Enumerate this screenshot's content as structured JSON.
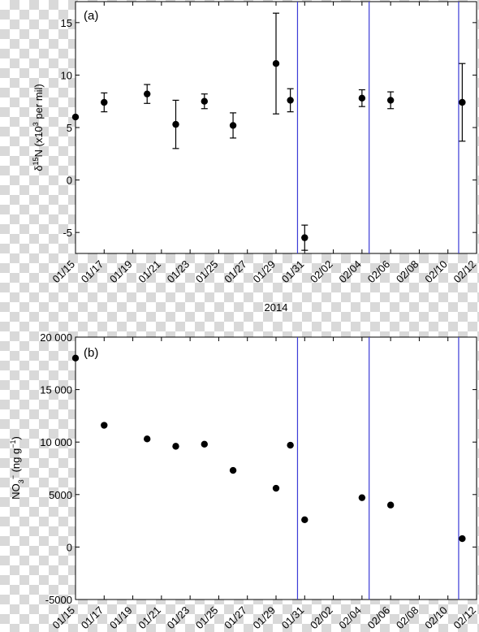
{
  "chart_data": [
    {
      "type": "scatter",
      "panel_label": "(a)",
      "xlabel": "2014",
      "ylabel": "δ15N (x10³ per mil)",
      "ylabel_parts": {
        "delta": "δ",
        "sup1": "15",
        "mid": "N (x10",
        "sup2": "3",
        "end": " per mil)"
      },
      "xlim": [
        "01/15",
        "02/12"
      ],
      "ylim": [
        -7,
        17
      ],
      "yticks": [
        -5,
        0,
        5,
        10,
        15
      ],
      "ytick_labels": [
        "-5",
        "0",
        "5",
        "10",
        "15"
      ],
      "xtick_labels": [
        "01/15",
        "01/17",
        "01/19",
        "01/21",
        "01/23",
        "01/25",
        "01/27",
        "01/29",
        "01/31",
        "02/02",
        "02/04",
        "02/06",
        "02/08",
        "02/10",
        "02/12"
      ],
      "grid": false,
      "vertical_lines_x": [
        "01/30 12:00",
        "02/04 12:00",
        "02/10 18:00"
      ],
      "points": [
        {
          "x": "01/15",
          "y": 6.0,
          "err": 0
        },
        {
          "x": "01/17",
          "y": 7.4,
          "err": 0.9
        },
        {
          "x": "01/20",
          "y": 8.2,
          "err": 0.9
        },
        {
          "x": "01/22",
          "y": 5.3,
          "err": 2.3
        },
        {
          "x": "01/24",
          "y": 7.5,
          "err": 0.7
        },
        {
          "x": "01/26",
          "y": 5.2,
          "err": 1.2
        },
        {
          "x": "01/29",
          "y": 11.1,
          "err": 4.8
        },
        {
          "x": "01/30",
          "y": 7.6,
          "err": 1.1
        },
        {
          "x": "01/31",
          "y": -5.5,
          "err": 1.2
        },
        {
          "x": "02/04",
          "y": 7.8,
          "err": 0.8
        },
        {
          "x": "02/06",
          "y": 7.6,
          "err": 0.8
        },
        {
          "x": "02/11",
          "y": 7.4,
          "err": 3.7
        }
      ]
    },
    {
      "type": "scatter",
      "panel_label": "(b)",
      "xlabel": "",
      "ylabel": "NO3− (ng g−1)",
      "ylabel_parts": {
        "base": "NO",
        "sub": "3",
        "sup1": "−",
        "mid": " (ng g",
        "sup2": "−1",
        "end": ")"
      },
      "xlim": [
        "01/15",
        "02/12"
      ],
      "ylim": [
        -5000,
        20000
      ],
      "yticks": [
        -5000,
        0,
        5000,
        10000,
        15000,
        20000
      ],
      "ytick_labels": [
        "-5000",
        "0",
        "5000",
        "10 000",
        "15 000",
        "20 000"
      ],
      "xtick_labels": [
        "01/15",
        "01/17",
        "01/19",
        "01/21",
        "01/23",
        "01/25",
        "01/27",
        "01/29",
        "01/31",
        "02/02",
        "02/04",
        "02/06",
        "02/08",
        "02/10",
        "02/12"
      ],
      "grid": false,
      "vertical_lines_x": [
        "01/30 12:00",
        "02/04 12:00",
        "02/10 18:00"
      ],
      "points": [
        {
          "x": "01/15",
          "y": 18000
        },
        {
          "x": "01/17",
          "y": 11600
        },
        {
          "x": "01/20",
          "y": 10300
        },
        {
          "x": "01/22",
          "y": 9600
        },
        {
          "x": "01/24",
          "y": 9800
        },
        {
          "x": "01/26",
          "y": 7300
        },
        {
          "x": "01/29",
          "y": 5600
        },
        {
          "x": "01/30",
          "y": 9700
        },
        {
          "x": "01/31",
          "y": 2600
        },
        {
          "x": "02/04",
          "y": 4700
        },
        {
          "x": "02/06",
          "y": 4000
        },
        {
          "x": "02/11",
          "y": 800
        }
      ]
    }
  ],
  "colors": {
    "vline": "#3b3bd6",
    "marker": "#000000",
    "axis": "#000000"
  }
}
